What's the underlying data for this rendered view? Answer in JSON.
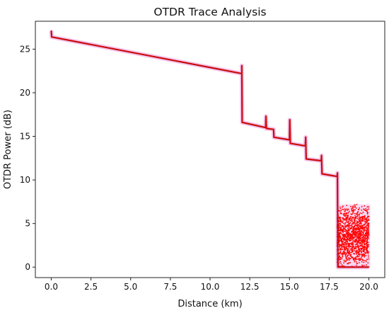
{
  "chart_data": {
    "type": "scatter",
    "title": "OTDR Trace Analysis",
    "xlabel": "Distance (km)",
    "ylabel": "OTDR Power (dB)",
    "xlim": [
      -1.0,
      21.0
    ],
    "ylim": [
      -1.2,
      28.2
    ],
    "xticks": [
      "0.0",
      "2.5",
      "5.0",
      "7.5",
      "10.0",
      "12.5",
      "15.0",
      "17.5",
      "20.0"
    ],
    "yticks": [
      "0",
      "5",
      "10",
      "15",
      "20",
      "25"
    ],
    "grid": false,
    "legend": "none",
    "colors": {
      "trace": "#8b1a1a",
      "noise": "#ff0000",
      "halo": "#f4b8e8"
    },
    "series": [
      {
        "type": "line",
        "points": [
          [
            0.0,
            27.1
          ],
          [
            0.03,
            26.4
          ],
          [
            12.0,
            22.2
          ],
          [
            12.0,
            23.1
          ],
          [
            12.02,
            16.6
          ],
          [
            13.5,
            16.0
          ],
          [
            13.52,
            17.3
          ],
          [
            13.55,
            15.9
          ],
          [
            14.0,
            15.8
          ],
          [
            14.02,
            14.9
          ],
          [
            15.0,
            14.6
          ],
          [
            15.02,
            16.9
          ],
          [
            15.05,
            14.2
          ],
          [
            16.0,
            13.9
          ],
          [
            16.02,
            14.9
          ],
          [
            16.05,
            12.4
          ],
          [
            17.0,
            12.2
          ],
          [
            17.02,
            12.8
          ],
          [
            17.05,
            10.7
          ],
          [
            18.0,
            10.4
          ],
          [
            18.02,
            10.8
          ],
          [
            18.05,
            0.0
          ],
          [
            20.0,
            0.0
          ]
        ]
      },
      {
        "type": "scatter",
        "name": "noise",
        "x_range": [
          18.0,
          20.0
        ],
        "y_range": [
          0.0,
          7.2
        ],
        "count": 1400
      }
    ]
  }
}
